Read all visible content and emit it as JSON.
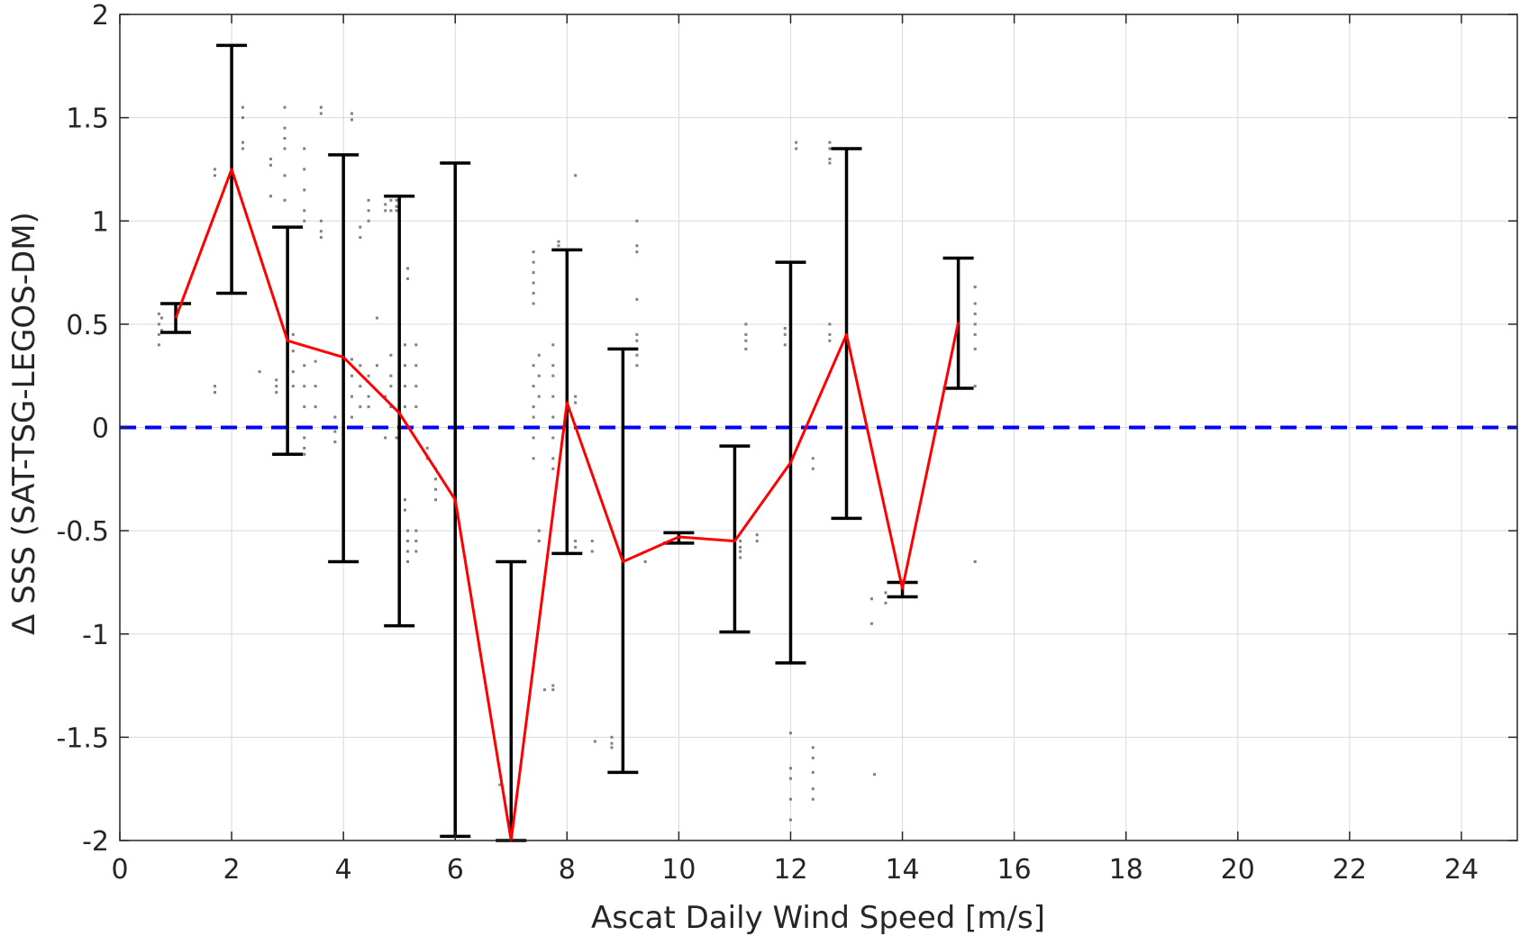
{
  "chart_data": {
    "type": "line",
    "title": "",
    "xlabel": "Ascat Daily Wind Speed [m/s]",
    "ylabel": "Δ SSS (SAT-TSG-LEGOS-DM)",
    "xlim": [
      0,
      25
    ],
    "ylim": [
      -2,
      2
    ],
    "xticks": [
      0,
      2,
      4,
      6,
      8,
      10,
      12,
      14,
      16,
      18,
      20,
      22,
      24
    ],
    "yticks": [
      -2,
      -1.5,
      -1,
      -0.5,
      0,
      0.5,
      1,
      1.5,
      2
    ],
    "xtick_labels": [
      "0",
      "2",
      "4",
      "6",
      "8",
      "10",
      "12",
      "14",
      "16",
      "18",
      "20",
      "22",
      "24"
    ],
    "ytick_labels": [
      "-2",
      "-1.5",
      "-1",
      "-0.5",
      "0",
      "0.5",
      "1",
      "1.5",
      "2"
    ],
    "grid": true,
    "legend": "none",
    "reference_line": {
      "y": 0,
      "style": "dashed",
      "color": "#0000ff"
    },
    "colors": {
      "mean_line": "#ff0000",
      "error_bars": "#000000",
      "scatter": "#808080",
      "grid": "#d9d9d9"
    },
    "series": [
      {
        "type": "line",
        "x": [
          1,
          2,
          3,
          4,
          5,
          6,
          7,
          8,
          9,
          10,
          11,
          12,
          13,
          14,
          15
        ],
        "y": [
          0.53,
          1.25,
          0.42,
          0.34,
          0.07,
          -0.35,
          -2.0,
          0.12,
          -0.65,
          -0.53,
          -0.55,
          -0.17,
          0.45,
          -0.78,
          0.51
        ]
      },
      {
        "type": "errorbar",
        "x": [
          1,
          2,
          3,
          4,
          5,
          6,
          7,
          8,
          9,
          10,
          11,
          12,
          13,
          14,
          15
        ],
        "lower": [
          0.46,
          0.65,
          -0.13,
          -0.65,
          -0.96,
          -1.98,
          -2.0,
          -0.61,
          -1.67,
          -0.56,
          -0.99,
          -1.14,
          -0.44,
          -0.82,
          0.19
        ],
        "upper": [
          0.6,
          1.85,
          0.97,
          1.32,
          1.12,
          1.28,
          -0.65,
          0.86,
          0.38,
          -0.51,
          -0.09,
          0.8,
          1.35,
          -0.75,
          0.82
        ]
      },
      {
        "type": "scatter",
        "points": [
          [
            0.7,
            0.55
          ],
          [
            0.7,
            0.5
          ],
          [
            0.7,
            0.45
          ],
          [
            0.7,
            0.4
          ],
          [
            0.75,
            0.53
          ],
          [
            0.75,
            0.47
          ],
          [
            1.7,
            1.25
          ],
          [
            1.7,
            1.22
          ],
          [
            1.7,
            0.2
          ],
          [
            1.7,
            0.17
          ],
          [
            2.2,
            1.55
          ],
          [
            2.2,
            1.5
          ],
          [
            2.2,
            1.38
          ],
          [
            2.2,
            1.35
          ],
          [
            2.5,
            0.27
          ],
          [
            2.7,
            1.3
          ],
          [
            2.7,
            1.27
          ],
          [
            2.7,
            1.12
          ],
          [
            2.8,
            0.2
          ],
          [
            2.8,
            0.17
          ],
          [
            2.8,
            0.23
          ],
          [
            2.95,
            1.55
          ],
          [
            2.95,
            1.45
          ],
          [
            2.95,
            1.4
          ],
          [
            2.95,
            1.35
          ],
          [
            2.95,
            1.22
          ],
          [
            2.95,
            1.1
          ],
          [
            3.1,
            0.45
          ],
          [
            3.1,
            0.37
          ],
          [
            3.1,
            0.27
          ],
          [
            3.1,
            0.2
          ],
          [
            3.3,
            1.35
          ],
          [
            3.3,
            1.25
          ],
          [
            3.3,
            1.15
          ],
          [
            3.3,
            1.05
          ],
          [
            3.3,
            1.0
          ],
          [
            3.3,
            0.3
          ],
          [
            3.3,
            0.2
          ],
          [
            3.3,
            0.1
          ],
          [
            3.3,
            0.0
          ],
          [
            3.3,
            -0.05
          ],
          [
            3.3,
            -0.1
          ],
          [
            3.3,
            -0.13
          ],
          [
            3.5,
            0.32
          ],
          [
            3.5,
            0.2
          ],
          [
            3.5,
            0.1
          ],
          [
            3.6,
            1.55
          ],
          [
            3.6,
            1.52
          ],
          [
            3.6,
            1.0
          ],
          [
            3.6,
            0.95
          ],
          [
            3.6,
            0.92
          ],
          [
            3.85,
            0.05
          ],
          [
            3.85,
            -0.02
          ],
          [
            3.85,
            -0.07
          ],
          [
            4.15,
            1.52
          ],
          [
            4.15,
            1.49
          ],
          [
            4.15,
            0.33
          ],
          [
            4.15,
            0.25
          ],
          [
            4.15,
            0.15
          ],
          [
            4.15,
            0.05
          ],
          [
            4.3,
            0.97
          ],
          [
            4.3,
            0.92
          ],
          [
            4.3,
            0.3
          ],
          [
            4.3,
            0.2
          ],
          [
            4.3,
            0.1
          ],
          [
            4.45,
            1.1
          ],
          [
            4.45,
            1.05
          ],
          [
            4.45,
            1.0
          ],
          [
            4.45,
            0.25
          ],
          [
            4.45,
            0.15
          ],
          [
            4.45,
            0.1
          ],
          [
            4.6,
            0.53
          ],
          [
            4.6,
            0.3
          ],
          [
            4.75,
            1.08
          ],
          [
            4.75,
            1.05
          ],
          [
            4.75,
            0.15
          ],
          [
            4.75,
            0.0
          ],
          [
            4.75,
            -0.05
          ],
          [
            4.85,
            1.1
          ],
          [
            4.85,
            1.05
          ],
          [
            4.85,
            0.35
          ],
          [
            4.85,
            0.25
          ],
          [
            4.85,
            0.2
          ],
          [
            4.85,
            0.1
          ],
          [
            4.95,
            1.1
          ],
          [
            4.95,
            1.07
          ],
          [
            4.95,
            1.05
          ],
          [
            4.95,
            -0.05
          ],
          [
            5.0,
            0.6
          ],
          [
            5.0,
            0.5
          ],
          [
            5.0,
            0.45
          ],
          [
            5.0,
            0.35
          ],
          [
            5.0,
            -0.35
          ],
          [
            5.0,
            -0.38
          ],
          [
            5.1,
            0.4
          ],
          [
            5.1,
            0.3
          ],
          [
            5.1,
            0.2
          ],
          [
            5.1,
            0.1
          ],
          [
            5.1,
            -0.35
          ],
          [
            5.1,
            -0.4
          ],
          [
            5.15,
            0.77
          ],
          [
            5.15,
            0.72
          ],
          [
            5.15,
            -0.5
          ],
          [
            5.15,
            -0.55
          ],
          [
            5.15,
            -0.6
          ],
          [
            5.15,
            -0.65
          ],
          [
            5.3,
            0.4
          ],
          [
            5.3,
            0.3
          ],
          [
            5.3,
            0.2
          ],
          [
            5.3,
            0.1
          ],
          [
            5.3,
            -0.5
          ],
          [
            5.3,
            -0.55
          ],
          [
            5.3,
            -0.6
          ],
          [
            5.5,
            -0.1
          ],
          [
            5.5,
            -0.15
          ],
          [
            5.65,
            -0.2
          ],
          [
            5.65,
            -0.25
          ],
          [
            5.65,
            -0.3
          ],
          [
            5.65,
            -0.35
          ],
          [
            6.8,
            -1.73
          ],
          [
            7.4,
            0.85
          ],
          [
            7.4,
            0.8
          ],
          [
            7.4,
            0.75
          ],
          [
            7.4,
            0.7
          ],
          [
            7.4,
            0.65
          ],
          [
            7.4,
            0.6
          ],
          [
            7.4,
            0.3
          ],
          [
            7.4,
            0.2
          ],
          [
            7.4,
            0.1
          ],
          [
            7.4,
            0.05
          ],
          [
            7.4,
            -0.05
          ],
          [
            7.4,
            -0.15
          ],
          [
            7.5,
            0.35
          ],
          [
            7.5,
            0.25
          ],
          [
            7.5,
            0.15
          ],
          [
            7.5,
            -0.5
          ],
          [
            7.5,
            -0.55
          ],
          [
            7.6,
            -1.27
          ],
          [
            7.75,
            0.4
          ],
          [
            7.75,
            0.3
          ],
          [
            7.75,
            0.25
          ],
          [
            7.75,
            0.15
          ],
          [
            7.75,
            0.05
          ],
          [
            7.75,
            -0.05
          ],
          [
            7.75,
            -0.15
          ],
          [
            7.75,
            -0.2
          ],
          [
            7.75,
            -1.25
          ],
          [
            7.75,
            -1.27
          ],
          [
            7.85,
            0.9
          ],
          [
            7.85,
            0.88
          ],
          [
            8.15,
            1.22
          ],
          [
            8.15,
            0.15
          ],
          [
            8.15,
            0.12
          ],
          [
            8.15,
            -0.55
          ],
          [
            8.15,
            -0.58
          ],
          [
            8.45,
            -0.55
          ],
          [
            8.45,
            -0.6
          ],
          [
            8.5,
            -1.52
          ],
          [
            8.8,
            -1.5
          ],
          [
            8.8,
            -1.53
          ],
          [
            8.8,
            -1.55
          ],
          [
            9.25,
            1.0
          ],
          [
            9.25,
            0.88
          ],
          [
            9.25,
            0.85
          ],
          [
            9.25,
            0.62
          ],
          [
            9.25,
            0.45
          ],
          [
            9.25,
            0.42
          ],
          [
            9.25,
            0.35
          ],
          [
            9.25,
            0.3
          ],
          [
            9.4,
            -0.65
          ],
          [
            11.1,
            -0.55
          ],
          [
            11.1,
            -0.58
          ],
          [
            11.1,
            -0.6
          ],
          [
            11.1,
            -0.63
          ],
          [
            11.2,
            0.5
          ],
          [
            11.2,
            0.45
          ],
          [
            11.2,
            0.42
          ],
          [
            11.2,
            0.38
          ],
          [
            11.4,
            -0.52
          ],
          [
            11.4,
            -0.55
          ],
          [
            11.9,
            0.48
          ],
          [
            11.9,
            0.45
          ],
          [
            11.9,
            0.4
          ],
          [
            12.0,
            0.35
          ],
          [
            12.0,
            0.25
          ],
          [
            12.0,
            0.15
          ],
          [
            12.0,
            0.05
          ],
          [
            12.0,
            -0.05
          ],
          [
            12.0,
            -1.48
          ],
          [
            12.0,
            -1.65
          ],
          [
            12.0,
            -1.7
          ],
          [
            12.0,
            -1.8
          ],
          [
            12.0,
            -1.9
          ],
          [
            12.1,
            1.38
          ],
          [
            12.1,
            1.35
          ],
          [
            12.4,
            -1.55
          ],
          [
            12.4,
            -1.6
          ],
          [
            12.4,
            -1.67
          ],
          [
            12.4,
            -1.75
          ],
          [
            12.4,
            -1.8
          ],
          [
            12.4,
            -0.15
          ],
          [
            12.4,
            -0.2
          ],
          [
            12.7,
            1.38
          ],
          [
            12.7,
            1.35
          ],
          [
            12.7,
            1.3
          ],
          [
            12.7,
            1.28
          ],
          [
            12.7,
            0.5
          ],
          [
            12.7,
            0.45
          ],
          [
            12.7,
            0.42
          ],
          [
            13.45,
            -0.83
          ],
          [
            13.45,
            -0.95
          ],
          [
            13.5,
            -1.68
          ],
          [
            13.7,
            -0.8
          ],
          [
            13.7,
            -0.85
          ],
          [
            15.3,
            0.68
          ],
          [
            15.3,
            0.6
          ],
          [
            15.3,
            0.55
          ],
          [
            15.3,
            0.5
          ],
          [
            15.3,
            0.45
          ],
          [
            15.3,
            0.38
          ],
          [
            15.3,
            0.2
          ],
          [
            15.3,
            -0.65
          ]
        ]
      }
    ]
  }
}
